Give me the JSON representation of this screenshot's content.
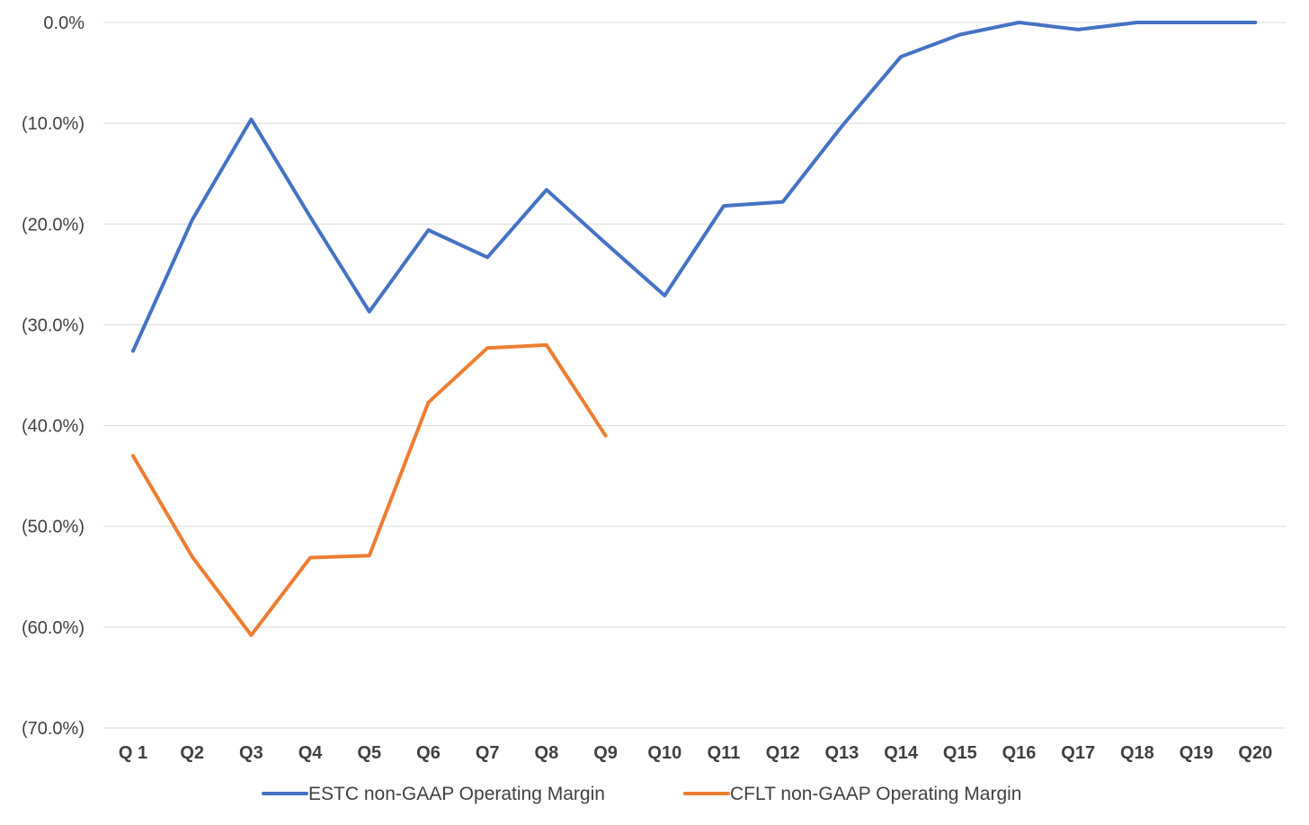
{
  "chart_data": {
    "type": "line",
    "title": "",
    "xlabel": "",
    "ylabel": "",
    "categories": [
      "Q 1",
      "Q2",
      "Q3",
      "Q4",
      "Q5",
      "Q6",
      "Q7",
      "Q8",
      "Q9",
      "Q10",
      "Q11",
      "Q12",
      "Q13",
      "Q14",
      "Q15",
      "Q16",
      "Q17",
      "Q18",
      "Q19",
      "Q20"
    ],
    "y_ticks": [
      {
        "value": 0,
        "label": "0.0%"
      },
      {
        "value": -10,
        "label": "(10.0%)"
      },
      {
        "value": -20,
        "label": "(20.0%)"
      },
      {
        "value": -30,
        "label": "(30.0%)"
      },
      {
        "value": -40,
        "label": "(40.0%)"
      },
      {
        "value": -50,
        "label": "(50.0%)"
      },
      {
        "value": -60,
        "label": "(60.0%)"
      },
      {
        "value": -70,
        "label": "(70.0%)"
      }
    ],
    "ylim": [
      -70,
      0
    ],
    "grid": true,
    "legend_position": "bottom",
    "series": [
      {
        "name": "ESTC non-GAAP Operating Margin",
        "color": "#4472c4",
        "values": [
          -32.6,
          -19.6,
          -9.6,
          -19.3,
          -28.7,
          -20.6,
          -23.3,
          -16.6,
          -21.9,
          -27.1,
          -18.2,
          -17.8,
          -10.3,
          -3.4,
          -1.2,
          0.0,
          -0.7,
          0.0,
          0.0,
          0.0
        ]
      },
      {
        "name": "CFLT non-GAAP Operating Margin",
        "color": "#ed7d31",
        "values": [
          -43.0,
          -53.0,
          -60.8,
          -53.1,
          -52.9,
          -37.7,
          -32.3,
          -32.0,
          -41.0,
          null,
          null,
          null,
          null,
          null,
          null,
          null,
          null,
          null,
          null,
          null
        ]
      }
    ]
  }
}
